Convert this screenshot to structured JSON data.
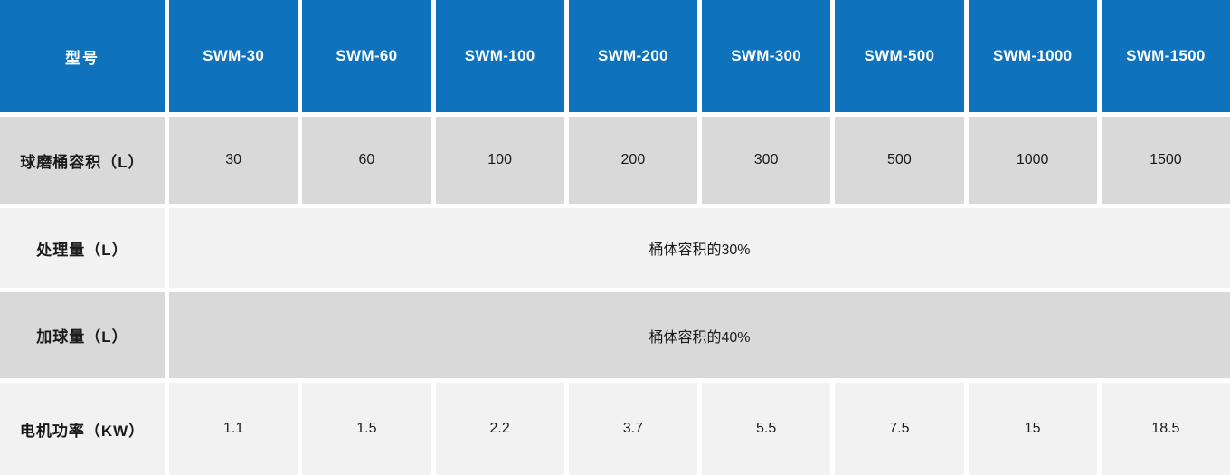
{
  "table": {
    "header_row": {
      "label": "型号",
      "models": [
        "SWM-30",
        "SWM-60",
        "SWM-100",
        "SWM-200",
        "SWM-300",
        "SWM-500",
        "SWM-1000",
        "SWM-1500"
      ]
    },
    "rows": [
      {
        "label": "球磨桶容积（L）",
        "type": "values",
        "values": [
          "30",
          "60",
          "100",
          "200",
          "300",
          "500",
          "1000",
          "1500"
        ]
      },
      {
        "label": "处理量（L）",
        "type": "merged",
        "merged_value": "桶体容积的30%"
      },
      {
        "label": "加球量（L）",
        "type": "merged",
        "merged_value": "桶体容积的40%"
      },
      {
        "label": "电机功率（KW）",
        "type": "values",
        "values": [
          "1.1",
          "1.5",
          "2.2",
          "3.7",
          "5.5",
          "7.5",
          "15",
          "18.5"
        ]
      }
    ],
    "colors": {
      "header_bg": "#0e72bd",
      "header_text": "#ffffff",
      "row_dark_bg": "#d9d9d9",
      "row_light_bg": "#f2f2f2",
      "gap_color": "#ffffff",
      "body_text": "#1a1a1a"
    }
  }
}
